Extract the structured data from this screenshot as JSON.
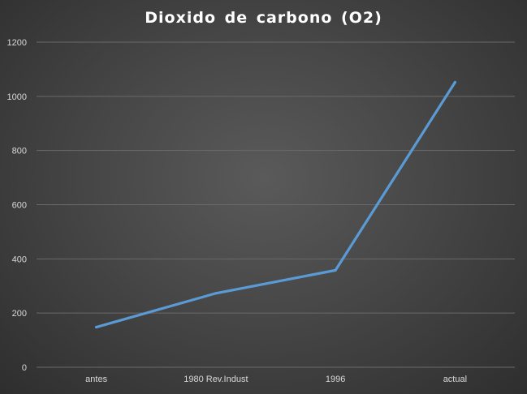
{
  "chart_data": {
    "type": "line",
    "title": "Dioxido  de  carbono  (O2)",
    "categories": [
      "antes",
      "1980 Rev.Indust",
      "1996",
      "actual"
    ],
    "series": [
      {
        "values": [
          148,
          273,
          358,
          1052
        ],
        "color": "#5b9bd5"
      }
    ],
    "ylim": [
      0,
      1200
    ],
    "yticks": [
      0,
      200,
      400,
      600,
      800,
      1000,
      1200
    ],
    "grid": true,
    "legend": "none"
  }
}
